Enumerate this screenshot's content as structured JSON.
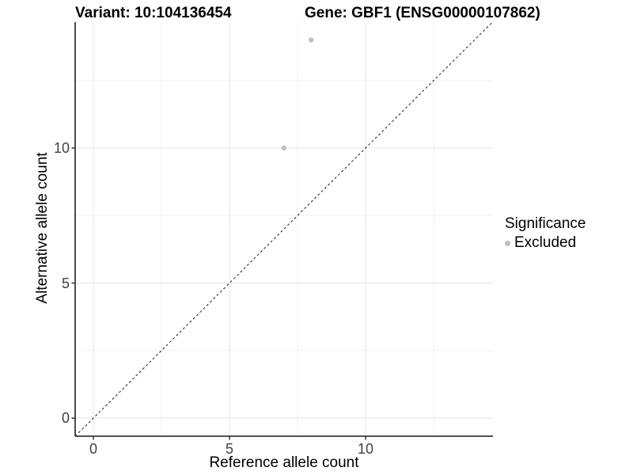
{
  "figure": {
    "title_left": "Variant: 10:104136454",
    "title_right": "Gene: GBF1 (ENSG00000107862)"
  },
  "chart_data": {
    "type": "scatter",
    "title": "Variant: 10:104136454 | Gene: GBF1 (ENSG00000107862)",
    "xlabel": "Reference allele count",
    "ylabel": "Alternative allele count",
    "xlim": [
      -0.67,
      14.68
    ],
    "ylim": [
      -0.67,
      14.66
    ],
    "x_ticks": [
      0,
      5,
      10
    ],
    "y_ticks": [
      0,
      5,
      10
    ],
    "x_minor_ticks": [
      2.5,
      7.5,
      12.5
    ],
    "y_minor_ticks": [
      2.5,
      7.5,
      12.5
    ],
    "grid": "on",
    "series": [
      {
        "name": "Excluded",
        "points": [
          {
            "x": 8,
            "y": 14
          },
          {
            "x": 7,
            "y": 10
          }
        ],
        "color": "#bfbfbf"
      }
    ],
    "reference_line": {
      "type": "identity",
      "slope": 1,
      "intercept": 0,
      "style": "dashed",
      "color": "#1a1a1a"
    },
    "legend": {
      "title": "Significance",
      "position": "right",
      "entries": [
        {
          "label": "Excluded",
          "color": "#bfbfbf"
        }
      ]
    },
    "style": {
      "major_grid_color": "#e5e5e5",
      "minor_grid_color": "#f2f2f2",
      "axis_line_color": "#3a3a3a",
      "tick_color": "#333333",
      "point_radius": 3.2
    }
  }
}
